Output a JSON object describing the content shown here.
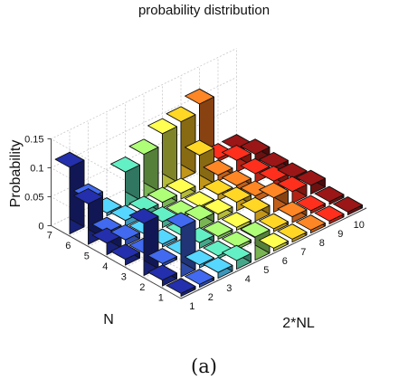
{
  "chart_data": {
    "type": "bar3d",
    "title": "probability distribution",
    "xlabel": "2*NL",
    "ylabel": "N",
    "zlabel": "Probability",
    "x_ticks": [
      "1",
      "2",
      "3",
      "4",
      "5",
      "6",
      "7",
      "8",
      "9",
      "10"
    ],
    "y_ticks": [
      "1",
      "2",
      "3",
      "4",
      "5",
      "6",
      "7"
    ],
    "z_ticks": [
      "0",
      "0.05",
      "0.1",
      "0.15"
    ],
    "zlim": [
      0,
      0.15
    ],
    "grid": true,
    "colormap": "jet, colored by 2*NL",
    "bars": [
      {
        "x": 1,
        "y": 7,
        "z": 0.115
      },
      {
        "x": 1,
        "y": 6,
        "z": 0.07
      },
      {
        "x": 1,
        "y": 5,
        "z": 0.02
      },
      {
        "x": 1,
        "y": 4,
        "z": 0.01
      },
      {
        "x": 1,
        "y": 3,
        "z": 0.09
      },
      {
        "x": 1,
        "y": 2,
        "z": 0.01
      },
      {
        "x": 1,
        "y": 1,
        "z": 0.005
      },
      {
        "x": 2,
        "y": 7,
        "z": 0.045
      },
      {
        "x": 2,
        "y": 6,
        "z": 0.005
      },
      {
        "x": 2,
        "y": 5,
        "z": 0.01
      },
      {
        "x": 2,
        "y": 4,
        "z": 0.005
      },
      {
        "x": 2,
        "y": 3,
        "z": 0.005
      },
      {
        "x": 2,
        "y": 2,
        "z": 0.085
      },
      {
        "x": 2,
        "y": 1,
        "z": 0.005
      },
      {
        "x": 3,
        "y": 7,
        "z": 0.005
      },
      {
        "x": 3,
        "y": 6,
        "z": 0.01
      },
      {
        "x": 3,
        "y": 5,
        "z": 0.005
      },
      {
        "x": 3,
        "y": 4,
        "z": 0.005
      },
      {
        "x": 3,
        "y": 3,
        "z": 0.005
      },
      {
        "x": 3,
        "y": 2,
        "z": 0.005
      },
      {
        "x": 3,
        "y": 1,
        "z": 0.01
      },
      {
        "x": 4,
        "y": 7,
        "z": 0.06
      },
      {
        "x": 4,
        "y": 6,
        "z": 0.01
      },
      {
        "x": 4,
        "y": 5,
        "z": 0.01
      },
      {
        "x": 4,
        "y": 4,
        "z": 0.005
      },
      {
        "x": 4,
        "y": 3,
        "z": 0.01
      },
      {
        "x": 4,
        "y": 2,
        "z": 0.005
      },
      {
        "x": 4,
        "y": 1,
        "z": 0.015
      },
      {
        "x": 5,
        "y": 7,
        "z": 0.075
      },
      {
        "x": 5,
        "y": 6,
        "z": 0.01
      },
      {
        "x": 5,
        "y": 5,
        "z": 0.005
      },
      {
        "x": 5,
        "y": 4,
        "z": 0.015
      },
      {
        "x": 5,
        "y": 3,
        "z": 0.005
      },
      {
        "x": 5,
        "y": 2,
        "z": 0.005
      },
      {
        "x": 5,
        "y": 1,
        "z": 0.04
      },
      {
        "x": 6,
        "y": 7,
        "z": 0.095
      },
      {
        "x": 6,
        "y": 6,
        "z": 0.01
      },
      {
        "x": 6,
        "y": 5,
        "z": 0.005
      },
      {
        "x": 6,
        "y": 4,
        "z": 0.01
      },
      {
        "x": 6,
        "y": 3,
        "z": 0.005
      },
      {
        "x": 6,
        "y": 2,
        "z": 0.005
      },
      {
        "x": 6,
        "y": 1,
        "z": 0.005
      },
      {
        "x": 7,
        "y": 7,
        "z": 0.1
      },
      {
        "x": 7,
        "y": 6,
        "z": 0.06
      },
      {
        "x": 7,
        "y": 5,
        "z": 0.01
      },
      {
        "x": 7,
        "y": 4,
        "z": 0.015
      },
      {
        "x": 7,
        "y": 3,
        "z": 0.015
      },
      {
        "x": 7,
        "y": 2,
        "z": 0.005
      },
      {
        "x": 7,
        "y": 1,
        "z": 0.005
      },
      {
        "x": 8,
        "y": 7,
        "z": 0.115
      },
      {
        "x": 8,
        "y": 6,
        "z": 0.01
      },
      {
        "x": 8,
        "y": 5,
        "z": 0.01
      },
      {
        "x": 8,
        "y": 4,
        "z": 0.01
      },
      {
        "x": 8,
        "y": 3,
        "z": 0.025
      },
      {
        "x": 8,
        "y": 2,
        "z": 0.01
      },
      {
        "x": 8,
        "y": 1,
        "z": 0.005
      },
      {
        "x": 9,
        "y": 7,
        "z": 0.005
      },
      {
        "x": 9,
        "y": 6,
        "z": 0.02
      },
      {
        "x": 9,
        "y": 5,
        "z": 0.015
      },
      {
        "x": 9,
        "y": 4,
        "z": 0.02
      },
      {
        "x": 9,
        "y": 3,
        "z": 0.02
      },
      {
        "x": 9,
        "y": 2,
        "z": 0.005
      },
      {
        "x": 9,
        "y": 1,
        "z": 0.005
      },
      {
        "x": 10,
        "y": 7,
        "z": 0.005
      },
      {
        "x": 10,
        "y": 6,
        "z": 0.015
      },
      {
        "x": 10,
        "y": 5,
        "z": 0.01
      },
      {
        "x": 10,
        "y": 4,
        "z": 0.01
      },
      {
        "x": 10,
        "y": 3,
        "z": 0.015
      },
      {
        "x": 10,
        "y": 2,
        "z": 0.005
      },
      {
        "x": 10,
        "y": 1,
        "z": 0.005
      }
    ],
    "series_colors": [
      "#1f2a9a",
      "#3a5fd6",
      "#4dc0f0",
      "#58d6b0",
      "#9be86a",
      "#e8f048",
      "#f8c020",
      "#f87820",
      "#e82a1a",
      "#8a1414"
    ]
  },
  "caption": "(a)"
}
